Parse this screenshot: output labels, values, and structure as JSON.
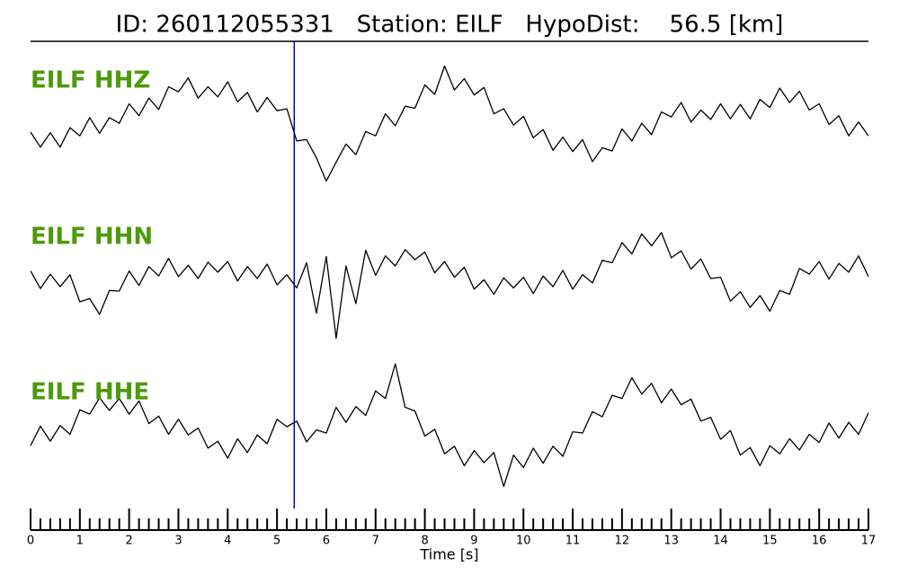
{
  "chart_data": {
    "type": "line",
    "title": "ID: 260112055331   Station: EILF   HypoDist:    56.5 [km]",
    "x_label": "Time [s]",
    "xlim": [
      0,
      17
    ],
    "xticks": [
      0,
      1,
      2,
      3,
      4,
      5,
      6,
      7,
      8,
      9,
      10,
      11,
      12,
      13,
      14,
      15,
      16,
      17
    ],
    "xminorticks": [
      0.2,
      0.4,
      0.6,
      0.8,
      1.2,
      1.4,
      1.6,
      1.8,
      2.2,
      2.4,
      2.6,
      2.8,
      3.2,
      3.4,
      3.6,
      3.8,
      4.2,
      4.4,
      4.6,
      4.8,
      5.2,
      5.4,
      5.6,
      5.8,
      6.2,
      6.4,
      6.6,
      6.8,
      7.2,
      7.4,
      7.6,
      7.8,
      8.2,
      8.4,
      8.6,
      8.8,
      9.2,
      9.4,
      9.6,
      9.8,
      10.2,
      10.4,
      10.6,
      10.8,
      11.2,
      11.4,
      11.6,
      11.8,
      12.2,
      12.4,
      12.6,
      12.8,
      13.2,
      13.4,
      13.6,
      13.8,
      14.2,
      14.4,
      14.6,
      14.8,
      15.2,
      15.4,
      15.6,
      15.8,
      16.2,
      16.4,
      16.6,
      16.8
    ],
    "ylim": [
      -1,
      1
    ],
    "label_color": "#4d9a0a",
    "vlines": [
      {
        "x": 5.35,
        "color": "#0000cc"
      }
    ],
    "x": [
      0,
      0.2,
      0.4,
      0.6,
      0.8,
      1,
      1.2,
      1.4,
      1.6,
      1.8,
      2,
      2.2,
      2.4,
      2.6,
      2.8,
      3,
      3.2,
      3.4,
      3.6,
      3.8,
      4,
      4.2,
      4.4,
      4.6,
      4.8,
      5,
      5.2,
      5.4,
      5.6,
      5.8,
      6,
      6.2,
      6.4,
      6.6,
      6.8,
      7,
      7.2,
      7.4,
      7.6,
      7.8,
      8,
      8.2,
      8.4,
      8.6,
      8.8,
      9,
      9.2,
      9.4,
      9.6,
      9.8,
      10,
      10.2,
      10.4,
      10.6,
      10.8,
      11,
      11.2,
      11.4,
      11.6,
      11.8,
      12,
      12.2,
      12.4,
      12.6,
      12.8,
      13,
      13.2,
      13.4,
      13.6,
      13.8,
      14,
      14.2,
      14.4,
      14.6,
      14.8,
      15,
      15.2,
      15.4,
      15.6,
      15.8,
      16,
      16.2,
      16.4,
      16.6,
      16.8,
      17
    ],
    "series": [
      {
        "name": "EILF HHZ",
        "color": "#000000",
        "values": [
          -0.1,
          -0.34,
          -0.11,
          -0.34,
          -0.03,
          -0.16,
          0.13,
          -0.12,
          0.13,
          0.04,
          0.35,
          0.16,
          0.44,
          0.26,
          0.62,
          0.54,
          0.76,
          0.44,
          0.62,
          0.46,
          0.7,
          0.38,
          0.53,
          0.22,
          0.45,
          0.24,
          0.27,
          -0.24,
          -0.22,
          -0.51,
          -0.88,
          -0.58,
          -0.29,
          -0.46,
          -0.09,
          -0.16,
          0.19,
          0.0,
          0.31,
          0.28,
          0.65,
          0.5,
          0.95,
          0.57,
          0.75,
          0.49,
          0.61,
          0.19,
          0.27,
          0.01,
          0.15,
          -0.19,
          -0.06,
          -0.39,
          -0.18,
          -0.41,
          -0.22,
          -0.57,
          -0.35,
          -0.4,
          -0.05,
          -0.24,
          0.04,
          -0.14,
          0.22,
          0.14,
          0.37,
          0.06,
          0.25,
          0.1,
          0.35,
          0.11,
          0.34,
          0.11,
          0.42,
          0.29,
          0.6,
          0.37,
          0.55,
          0.25,
          0.35,
          0.02,
          0.16,
          -0.16,
          0.06,
          -0.16
        ]
      },
      {
        "name": "EILF HHN",
        "color": "#000000",
        "values": [
          0.12,
          -0.16,
          0.07,
          -0.13,
          0.06,
          -0.37,
          -0.32,
          -0.57,
          -0.19,
          -0.2,
          0.12,
          -0.11,
          0.19,
          0.04,
          0.32,
          0.03,
          0.21,
          0.0,
          0.26,
          0.1,
          0.27,
          -0.04,
          0.19,
          0.0,
          0.23,
          -0.1,
          0.06,
          -0.15,
          0.25,
          -0.55,
          0.35,
          -0.95,
          0.2,
          -0.4,
          0.45,
          0.05,
          0.36,
          0.2,
          0.46,
          0.3,
          0.42,
          0.09,
          0.27,
          0.02,
          0.18,
          -0.17,
          -0.02,
          -0.25,
          0.01,
          -0.15,
          0.02,
          -0.24,
          0.04,
          -0.13,
          0.13,
          -0.17,
          0.06,
          -0.07,
          0.29,
          0.25,
          0.57,
          0.39,
          0.71,
          0.52,
          0.73,
          0.33,
          0.44,
          0.15,
          0.31,
          0.0,
          0.02,
          -0.36,
          -0.21,
          -0.46,
          -0.27,
          -0.52,
          -0.19,
          -0.25,
          0.16,
          0.07,
          0.27,
          -0.01,
          0.24,
          0.1,
          0.36,
          0.03
        ]
      },
      {
        "name": "EILF HHE",
        "color": "#000000",
        "values": [
          -0.3,
          0.01,
          -0.23,
          0.02,
          -0.12,
          0.27,
          0.2,
          0.46,
          0.26,
          0.45,
          0.2,
          0.41,
          0.05,
          0.17,
          -0.12,
          0.12,
          -0.13,
          -0.02,
          -0.34,
          -0.23,
          -0.5,
          -0.19,
          -0.41,
          -0.13,
          -0.27,
          0.12,
          0.0,
          0.09,
          -0.24,
          -0.05,
          -0.1,
          0.31,
          0.07,
          0.32,
          0.18,
          0.57,
          0.45,
          1.0,
          0.31,
          0.25,
          -0.15,
          -0.04,
          -0.43,
          -0.31,
          -0.62,
          -0.38,
          -0.57,
          -0.41,
          -0.95,
          -0.45,
          -0.65,
          -0.34,
          -0.58,
          -0.31,
          -0.47,
          -0.08,
          -0.1,
          0.24,
          0.16,
          0.5,
          0.45,
          0.78,
          0.52,
          0.69,
          0.38,
          0.6,
          0.35,
          0.44,
          0.09,
          0.15,
          -0.2,
          -0.06,
          -0.45,
          -0.33,
          -0.62,
          -0.3,
          -0.43,
          -0.19,
          -0.37,
          -0.12,
          -0.25,
          0.06,
          -0.18,
          0.07,
          -0.12,
          0.22
        ]
      }
    ]
  }
}
